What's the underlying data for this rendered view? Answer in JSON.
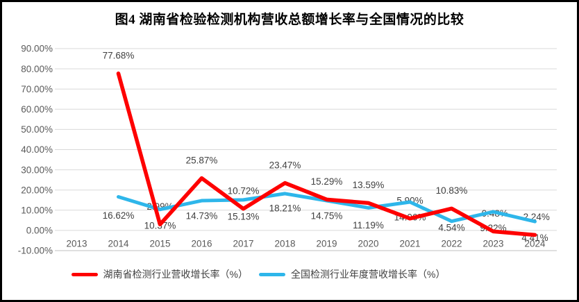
{
  "title": "图4 湖南省检验检测机构营收总额增长率与全国情况的比较",
  "colors": {
    "hunan_series": "#fe0000",
    "national_series": "#2eb6ea",
    "gridline": "#d9d9d9",
    "axis_line": "#bfbfbf",
    "axis_text": "#595959",
    "data_label_text": "#404040",
    "title_text": "#000000",
    "border": "#000000",
    "background": "#ffffff"
  },
  "chart_data": {
    "type": "line",
    "title": "图4 湖南省检验检测机构营收总额增长率与全国情况的比较",
    "categories": [
      "2013",
      "2014",
      "2015",
      "2016",
      "2017",
      "2018",
      "2019",
      "2020",
      "2021",
      "2022",
      "2023",
      "2024"
    ],
    "grid": true,
    "legend_position": "bottom",
    "y_axis": {
      "min": -10,
      "max": 90,
      "tick_step": 10,
      "tick_labels": [
        "90.00%",
        "80.00%",
        "70.00%",
        "60.00%",
        "50.00%",
        "40.00%",
        "30.00%",
        "20.00%",
        "10.00%",
        "0.00%",
        "-10.00%"
      ]
    },
    "series": [
      {
        "name": "湖南省检测行业营收增长率（%）",
        "color": "#fe0000",
        "start_category": "2014",
        "values": [
          77.68,
          2.99,
          25.87,
          10.72,
          23.47,
          15.29,
          13.59,
          5.9,
          10.83,
          -0.48,
          -2.24
        ],
        "point_labels": [
          "77.68%",
          "2.99%",
          "25.87%",
          "10.72%",
          "23.47%",
          "15.29%",
          "13.59%",
          "5.90%",
          "10.83%",
          "-0.48%",
          "-2.24%"
        ]
      },
      {
        "name": "全国检测行业年度营收增长率（%）",
        "color": "#2eb6ea",
        "start_category": "2014",
        "values": [
          16.62,
          10.37,
          14.73,
          15.13,
          18.21,
          14.75,
          11.19,
          14.06,
          4.54,
          9.22,
          4.41
        ],
        "point_labels": [
          "16.62%",
          "10.37%",
          "14.73%",
          "15.13%",
          "18.21%",
          "14.75%",
          "11.19%",
          "14.06%",
          "4.54%",
          "9.22%",
          "4.41%"
        ]
      }
    ]
  }
}
